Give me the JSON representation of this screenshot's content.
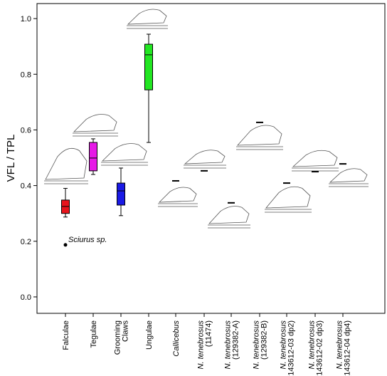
{
  "chart_data": {
    "type": "box",
    "ylabel": "VFL / TPL",
    "categories": [
      [
        "Falculae"
      ],
      [
        "Tegulae"
      ],
      [
        "Grooming",
        "Claws"
      ],
      [
        "Ungulae"
      ],
      [
        "Callicebus"
      ],
      [
        "N. tenebrosus",
        "(11474)"
      ],
      [
        "N. tenebrosus",
        "(129382-A)"
      ],
      [
        "N. tenebrosus",
        "(129382-B)"
      ],
      [
        "N. tenebrosus",
        "(143612-03 dp2)"
      ],
      [
        "N. tenebrosus",
        "(143612-02 dp3)"
      ],
      [
        "N. tenebrosus",
        "(143612-04 dp4)"
      ]
    ],
    "boxes": [
      {
        "color": "#e8141c",
        "whislo": 0.287,
        "q1": 0.3,
        "med": 0.325,
        "q3": 0.348,
        "whishi": 0.39
      },
      {
        "color": "#e619e6",
        "whislo": 0.44,
        "q1": 0.453,
        "med": 0.499,
        "q3": 0.555,
        "whishi": 0.568
      },
      {
        "color": "#1a1ae6",
        "whislo": 0.292,
        "q1": 0.33,
        "med": 0.381,
        "q3": 0.409,
        "whishi": 0.463
      },
      {
        "color": "#22e622",
        "whislo": 0.555,
        "q1": 0.744,
        "med": 0.87,
        "q3": 0.908,
        "whishi": 0.944
      }
    ],
    "outliers": [
      {
        "category": 0,
        "label": "Sciurus sp.",
        "value": 0.187
      }
    ],
    "values": [
      null,
      null,
      null,
      null,
      0.417,
      0.453,
      0.338,
      0.627,
      0.409,
      0.45,
      0.478
    ],
    "ylim": [
      -0.059,
      1.054
    ],
    "yticks": [
      {
        "value": 0,
        "label": "0.0"
      },
      0.2,
      0.4,
      0.6,
      0.8,
      {
        "value": 1,
        "label": "1.0"
      }
    ]
  }
}
